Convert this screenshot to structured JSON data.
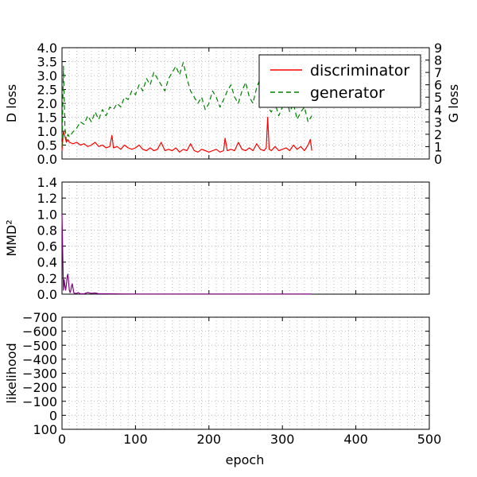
{
  "figure": {
    "xlabel": "epoch",
    "xticks": [
      0,
      100,
      200,
      300,
      400,
      500
    ],
    "xlim": [
      0,
      500
    ],
    "colors": {
      "discriminator": "#ff0000",
      "generator": "#008000",
      "mmd": "#800080",
      "grid": "#bfbfbf"
    }
  },
  "chart_data": [
    {
      "type": "line",
      "ylabel": "D loss",
      "ylabel_right": "G loss",
      "ylim": [
        0,
        4.0
      ],
      "yticks": [
        "0.0",
        "0.5",
        "1.0",
        "1.5",
        "2.0",
        "2.5",
        "3.0",
        "3.5",
        "4.0"
      ],
      "ylim_right": [
        0,
        9
      ],
      "yticks_right": [
        "0",
        "1",
        "2",
        "3",
        "4",
        "5",
        "6",
        "7",
        "8",
        "9"
      ],
      "grid": true,
      "legend": "top-right",
      "series": [
        {
          "name": "discriminator",
          "axis": "left",
          "style": "solid",
          "color": "#ff0000",
          "x": [
            0,
            2,
            4,
            6,
            8,
            10,
            15,
            20,
            25,
            30,
            35,
            40,
            45,
            50,
            55,
            60,
            65,
            68,
            70,
            75,
            80,
            85,
            90,
            95,
            100,
            105,
            110,
            115,
            120,
            125,
            130,
            135,
            140,
            145,
            150,
            155,
            160,
            165,
            170,
            175,
            180,
            185,
            190,
            195,
            200,
            205,
            210,
            215,
            220,
            222,
            225,
            230,
            235,
            240,
            245,
            250,
            255,
            260,
            265,
            270,
            275,
            278,
            280,
            282,
            285,
            290,
            295,
            300,
            305,
            310,
            315,
            320,
            325,
            330,
            335,
            338,
            340
          ],
          "y": [
            0.3,
            1.0,
            0.8,
            0.6,
            0.7,
            0.6,
            0.55,
            0.6,
            0.5,
            0.55,
            0.45,
            0.5,
            0.6,
            0.45,
            0.5,
            0.4,
            0.45,
            0.85,
            0.4,
            0.45,
            0.35,
            0.5,
            0.4,
            0.35,
            0.4,
            0.5,
            0.35,
            0.3,
            0.4,
            0.3,
            0.35,
            0.6,
            0.3,
            0.35,
            0.3,
            0.4,
            0.25,
            0.35,
            0.3,
            0.55,
            0.3,
            0.25,
            0.35,
            0.3,
            0.25,
            0.3,
            0.35,
            0.25,
            0.3,
            0.75,
            0.3,
            0.35,
            0.3,
            0.6,
            0.35,
            0.3,
            0.4,
            0.3,
            0.55,
            0.35,
            0.3,
            0.4,
            1.5,
            0.35,
            0.3,
            0.45,
            0.3,
            0.35,
            0.4,
            0.3,
            0.5,
            0.35,
            0.45,
            0.3,
            0.5,
            0.7,
            0.3
          ]
        },
        {
          "name": "generator",
          "axis": "right",
          "style": "dashed",
          "color": "#008000",
          "x": [
            0,
            2,
            4,
            6,
            8,
            10,
            15,
            20,
            25,
            30,
            35,
            40,
            45,
            50,
            55,
            60,
            65,
            70,
            75,
            80,
            85,
            90,
            95,
            100,
            105,
            110,
            115,
            120,
            125,
            130,
            135,
            140,
            145,
            150,
            155,
            160,
            165,
            170,
            175,
            180,
            185,
            190,
            195,
            200,
            205,
            210,
            215,
            220,
            225,
            230,
            235,
            240,
            245,
            250,
            255,
            260,
            265,
            270,
            275,
            280,
            285,
            290,
            295,
            300,
            305,
            310,
            315,
            320,
            325,
            330,
            335,
            340
          ],
          "y": [
            1.0,
            7.5,
            2.5,
            1.5,
            2.0,
            1.8,
            2.2,
            2.5,
            3.0,
            2.8,
            3.5,
            3.0,
            3.8,
            3.2,
            4.0,
            3.5,
            4.2,
            4.0,
            4.5,
            4.2,
            5.0,
            4.8,
            5.5,
            5.2,
            6.0,
            5.5,
            6.5,
            6.0,
            7.0,
            6.5,
            6.0,
            5.5,
            6.5,
            7.0,
            7.5,
            6.8,
            7.8,
            6.5,
            5.5,
            5.0,
            4.5,
            5.0,
            4.0,
            4.5,
            5.5,
            5.0,
            4.2,
            4.8,
            5.5,
            6.0,
            5.0,
            4.5,
            5.5,
            6.2,
            5.0,
            4.5,
            5.8,
            6.5,
            5.0,
            4.2,
            3.8,
            4.5,
            3.5,
            4.2,
            5.0,
            3.8,
            4.5,
            3.2,
            3.8,
            4.2,
            3.0,
            3.5
          ]
        }
      ]
    },
    {
      "type": "line",
      "ylabel": "MMD²",
      "ylim": [
        0,
        1.4
      ],
      "yticks": [
        "0.0",
        "0.2",
        "0.4",
        "0.6",
        "0.8",
        "1.0",
        "1.2",
        "1.4"
      ],
      "grid": true,
      "series": [
        {
          "color": "#800080",
          "x": [
            0,
            1,
            2,
            3,
            4,
            5,
            6,
            7,
            8,
            9,
            10,
            11,
            12,
            13,
            14,
            15,
            16,
            17,
            18,
            19,
            20,
            22,
            25,
            30,
            35,
            40,
            45,
            50,
            60,
            80,
            100,
            150,
            200,
            250,
            300,
            340
          ],
          "y": [
            1.0,
            0.5,
            0.05,
            0.18,
            0.1,
            0.05,
            0.12,
            0.22,
            0.25,
            0.15,
            0.05,
            0.02,
            0.05,
            0.1,
            0.13,
            0.07,
            0.02,
            0.01,
            0.01,
            0.01,
            0.01,
            0.02,
            0.005,
            0.005,
            0.02,
            0.01,
            0.015,
            0.005,
            0.005,
            0.003,
            0.002,
            0.002,
            0.002,
            0.002,
            0.002,
            0.002
          ]
        }
      ]
    },
    {
      "type": "line",
      "ylabel": "likelihood",
      "ylim": [
        -750,
        100
      ],
      "yticks": [
        "100",
        "0",
        "−100",
        "−200",
        "−300",
        "−400",
        "−500",
        "−600",
        "−700"
      ],
      "grid": true,
      "series": []
    }
  ]
}
